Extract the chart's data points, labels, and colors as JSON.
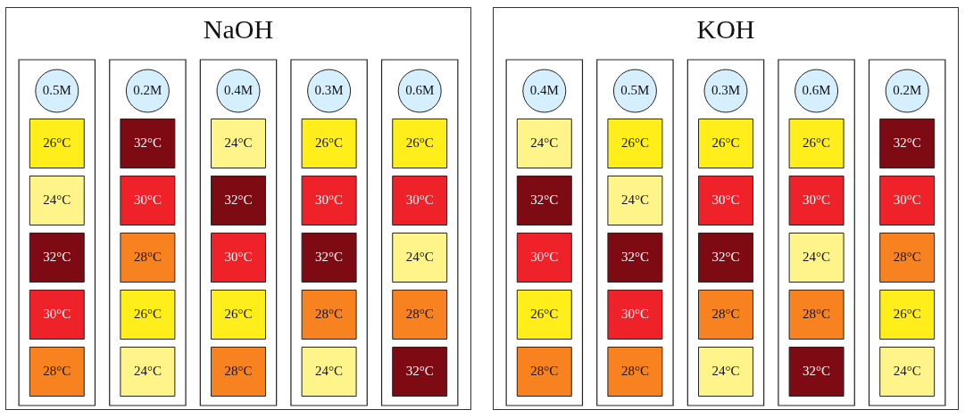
{
  "chart_data": [
    {
      "type": "heatmap",
      "title": "NaOH",
      "categories": [
        "0.5M",
        "0.2M",
        "0.4M",
        "0.3M",
        "0.6M"
      ],
      "y_categories": [
        null,
        null,
        null,
        null,
        null
      ],
      "tick_labels": "x",
      "grid": false,
      "cells": [
        [
          26,
          32,
          24,
          26,
          26
        ],
        [
          24,
          30,
          32,
          30,
          30
        ],
        [
          32,
          28,
          30,
          32,
          24
        ],
        [
          30,
          26,
          26,
          28,
          28
        ],
        [
          28,
          24,
          28,
          24,
          32
        ]
      ],
      "cell_labels": [
        [
          "26°C",
          "32°C",
          "24°C",
          "26°C",
          "26°C"
        ],
        [
          "24°C",
          "30°C",
          "32°C",
          "30°C",
          "30°C"
        ],
        [
          "32°C",
          "28°C",
          "30°C",
          "32°C",
          "24°C"
        ],
        [
          "30°C",
          "26°C",
          "26°C",
          "28°C",
          "28°C"
        ],
        [
          "28°C",
          "24°C",
          "28°C",
          "24°C",
          "32°C"
        ]
      ],
      "colors": [
        "#fff48a",
        "#ffee1a",
        "#f7821f",
        "#ee2228",
        "#7e0a14"
      ]
    },
    {
      "type": "heatmap",
      "title": "KOH",
      "categories": [
        "0.4M",
        "0.5M",
        "0.3M",
        "0.6M",
        "0.2M"
      ],
      "y_categories": [
        null,
        null,
        null,
        null,
        null
      ],
      "tick_labels": "x",
      "grid": false,
      "cells": [
        [
          24,
          26,
          26,
          26,
          32
        ],
        [
          32,
          24,
          30,
          30,
          30
        ],
        [
          30,
          32,
          32,
          24,
          28
        ],
        [
          26,
          30,
          28,
          28,
          26
        ],
        [
          28,
          28,
          24,
          32,
          24
        ]
      ],
      "cell_labels": [
        [
          "24°C",
          "26°C",
          "26°C",
          "26°C",
          "32°C"
        ],
        [
          "32°C",
          "24°C",
          "30°C",
          "30°C",
          "30°C"
        ],
        [
          "30°C",
          "32°C",
          "32°C",
          "24°C",
          "28°C"
        ],
        [
          "26°C",
          "30°C",
          "28°C",
          "28°C",
          "26°C"
        ],
        [
          "28°C",
          "28°C",
          "24°C",
          "32°C",
          "24°C"
        ]
      ],
      "colors": [
        "#fff48a",
        "#ffee1a",
        "#f7821f",
        "#ee2228",
        "#7e0a14"
      ]
    }
  ]
}
